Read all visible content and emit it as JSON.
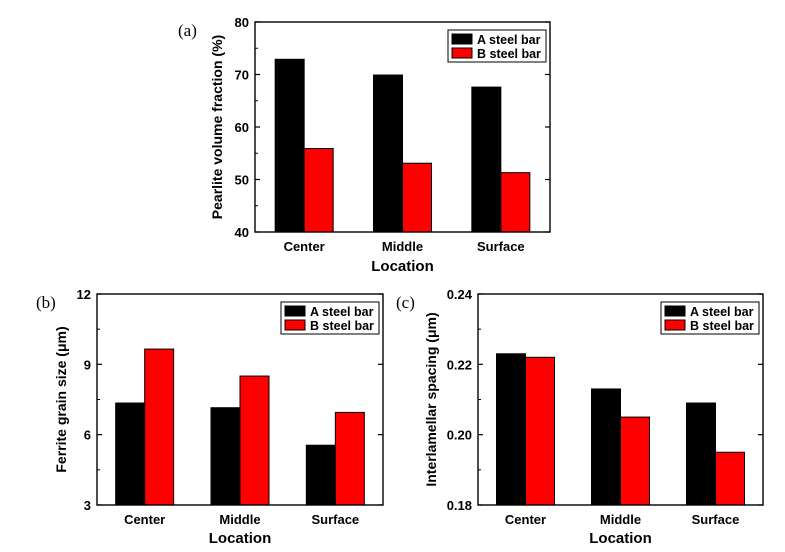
{
  "chart_data": [
    {
      "panel_label": "(a)",
      "type": "bar",
      "categories": [
        "Center",
        "Middle",
        "Surface"
      ],
      "series": [
        {
          "name": "A steel bar",
          "color": "#000000",
          "values": [
            72.9,
            69.9,
            67.6
          ]
        },
        {
          "name": "B steel bar",
          "color": "#ff0000",
          "values": [
            55.9,
            53.1,
            51.3
          ]
        }
      ],
      "xlabel": "Location",
      "ylabel": "Pearlite volume fraction (%)",
      "ylim": [
        40,
        80
      ],
      "yticks": [
        40,
        50,
        60,
        70,
        80
      ],
      "ytick_labels": [
        "40",
        "50",
        "60",
        "70",
        "80"
      ],
      "legend_position": "top-right",
      "grid": false
    },
    {
      "panel_label": "(b)",
      "type": "bar",
      "categories": [
        "Center",
        "Middle",
        "Surface"
      ],
      "series": [
        {
          "name": "A steel bar",
          "color": "#000000",
          "values": [
            7.35,
            7.15,
            5.55
          ]
        },
        {
          "name": "B steel bar",
          "color": "#ff0000",
          "values": [
            9.65,
            8.5,
            6.95
          ]
        }
      ],
      "xlabel": "Location",
      "ylabel": "Ferrite grain size (μm)",
      "ylim": [
        3,
        12
      ],
      "yticks": [
        3,
        6,
        9,
        12
      ],
      "ytick_labels": [
        "3",
        "6",
        "9",
        "12"
      ],
      "legend_position": "top-right",
      "grid": false
    },
    {
      "panel_label": "(c)",
      "type": "bar",
      "categories": [
        "Center",
        "Middle",
        "Surface"
      ],
      "series": [
        {
          "name": "A steel bar",
          "color": "#000000",
          "values": [
            0.223,
            0.213,
            0.209
          ]
        },
        {
          "name": "B steel bar",
          "color": "#ff0000",
          "values": [
            0.222,
            0.205,
            0.195
          ]
        }
      ],
      "xlabel": "Location",
      "ylabel": "Interlamellar spacing (μm)",
      "ylim": [
        0.18,
        0.24
      ],
      "yticks": [
        0.18,
        0.2,
        0.22,
        0.24
      ],
      "ytick_labels": [
        "0.18",
        "0.20",
        "0.22",
        "0.24"
      ],
      "legend_position": "top-right",
      "grid": false
    }
  ]
}
